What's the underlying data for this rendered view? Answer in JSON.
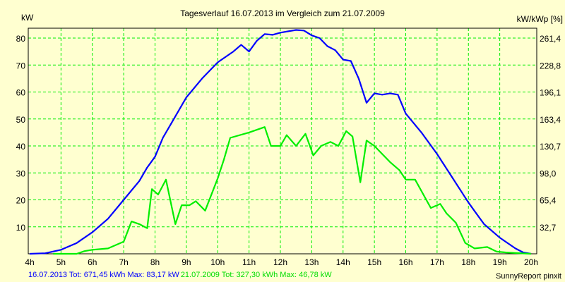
{
  "chart_data": {
    "type": "line",
    "title": "Tagesverlauf 16.07.2013 im Vergleich zum 21.07.2009",
    "ylabel": "kW",
    "ylabel_right": "kW/kWp [%]",
    "xlim": [
      4,
      20
    ],
    "ylim": [
      0,
      83
    ],
    "x_ticks": [
      "4h",
      "5h",
      "6h",
      "7h",
      "8h",
      "9h",
      "10h",
      "11h",
      "12h",
      "13h",
      "14h",
      "15h",
      "16h",
      "17h",
      "18h",
      "19h",
      "20h"
    ],
    "y_ticks": [
      10,
      20,
      30,
      40,
      50,
      60,
      70,
      80
    ],
    "y_ticks_right": [
      "32,7",
      "65,4",
      "98,0",
      "130,7",
      "163,4",
      "196,1",
      "228,8",
      "261,4"
    ],
    "grid": true,
    "series": [
      {
        "name": "16.07.2013",
        "color": "#0000ff",
        "x": [
          4,
          4.5,
          5,
          5.5,
          6,
          6.5,
          7,
          7.5,
          7.75,
          8,
          8.25,
          8.5,
          9,
          9.5,
          10,
          10.5,
          10.75,
          11,
          11.25,
          11.5,
          11.75,
          12,
          12.5,
          12.75,
          13,
          13.25,
          13.5,
          13.75,
          14,
          14.25,
          14.5,
          14.75,
          15,
          15.25,
          15.5,
          15.75,
          16,
          16.5,
          17,
          17.5,
          18,
          18.25,
          18.5,
          19,
          19.5,
          19.75,
          20
        ],
        "y": [
          0,
          0.2,
          1.5,
          4,
          8,
          13,
          20,
          27,
          32,
          36,
          43,
          48,
          58,
          65,
          71,
          75,
          77.5,
          75,
          79,
          81.5,
          81.2,
          82,
          83,
          82.8,
          81,
          80,
          77,
          75.5,
          72,
          71.5,
          65,
          56,
          59.5,
          59,
          59.5,
          59,
          52,
          45,
          37,
          28,
          19,
          15,
          11,
          6,
          2,
          0.5,
          0
        ]
      },
      {
        "name": "21.07.2009",
        "color": "#00ee00",
        "x": [
          4.75,
          5.5,
          5.75,
          6,
          6.5,
          7,
          7.25,
          7.5,
          7.75,
          7.9,
          8.1,
          8.35,
          8.65,
          8.85,
          9.1,
          9.3,
          9.6,
          10,
          10.2,
          10.4,
          11,
          11.5,
          11.7,
          12,
          12.2,
          12.5,
          12.8,
          13.05,
          13.3,
          13.6,
          13.85,
          14.1,
          14.3,
          14.55,
          14.75,
          15,
          15.25,
          15.5,
          15.8,
          16,
          16.3,
          16.8,
          17.1,
          17.3,
          17.6,
          17.9,
          18.2,
          18.6,
          18.9,
          19.2,
          19.5,
          20
        ],
        "y": [
          0,
          0,
          1,
          1.5,
          2,
          4.5,
          12,
          11,
          9.5,
          24,
          22,
          27.5,
          11,
          18,
          18,
          19.5,
          16,
          28,
          35,
          43,
          45,
          47,
          40,
          40,
          44,
          40,
          44.5,
          36.5,
          40,
          41.5,
          40,
          45.5,
          43.5,
          26.5,
          42,
          40,
          37,
          34,
          31,
          27.5,
          27.5,
          17,
          18.5,
          15,
          11.5,
          4,
          2,
          2.5,
          0.8,
          0.5,
          0.3,
          0
        ]
      }
    ],
    "legend": {
      "s1": "16.07.2013 Tot: 671,45 kWh Max: 83,17 kW",
      "s2": "21.07.2009 Tot: 327,30 kWh Max: 46,78 kW"
    },
    "footer": "SunnyReport pinxit"
  }
}
